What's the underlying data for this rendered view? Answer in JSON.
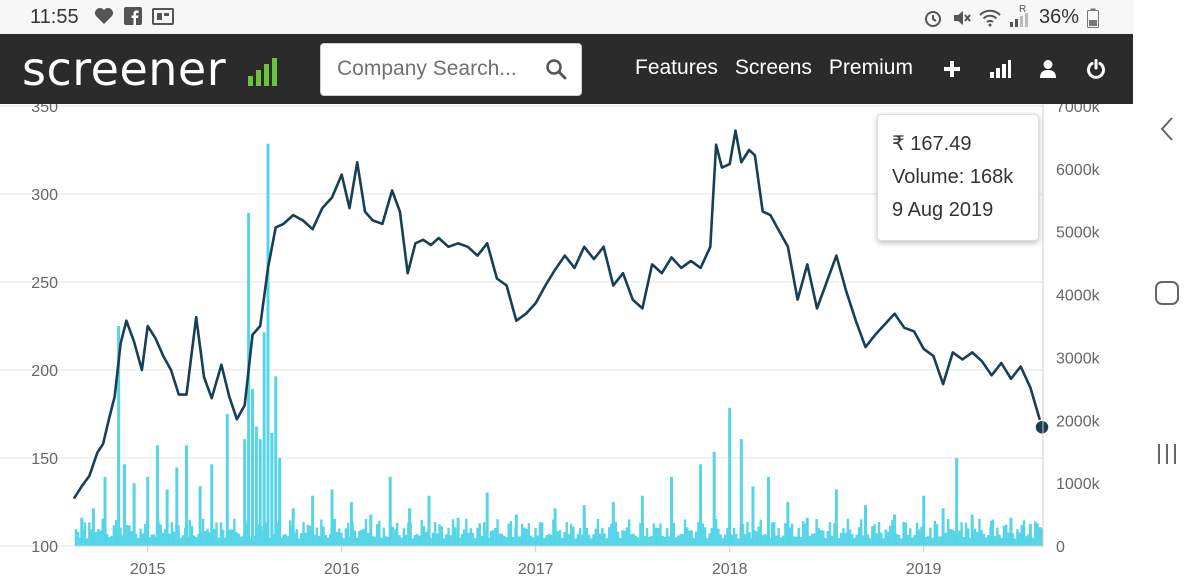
{
  "statusbar": {
    "time": "11:55",
    "battery": "36%",
    "signal_tag": "R",
    "left_icons": [
      "heart-icon",
      "facebook-icon",
      "weather-icon"
    ],
    "right_icons": [
      "alarm-icon",
      "mute-icon",
      "wifi-icon",
      "signal-icon",
      "battery-icon"
    ]
  },
  "navbar": {
    "logo": "screener",
    "search_placeholder": "Company Search...",
    "links": [
      "Features",
      "Screens",
      "Premium"
    ],
    "icons": [
      "plus-icon",
      "bar-chart-icon",
      "user-icon",
      "power-icon"
    ]
  },
  "android_nav": [
    "back-icon",
    "home-icon",
    "recents-icon"
  ],
  "tooltip": {
    "price": "₹ 167.49",
    "volume": "Volume: 168k",
    "date": "9 Aug 2019"
  },
  "colors": {
    "price_line": "#173f55",
    "volume_bars": "#56d4e8",
    "navbar": "#2b2b2b",
    "logo_green": "#6dc43b"
  },
  "chart_data": {
    "type": "line",
    "x_ticks": [
      "2015",
      "2016",
      "2017",
      "2018",
      "2019"
    ],
    "y_left_ticks": [
      "100",
      "150",
      "200",
      "250",
      "300",
      "350"
    ],
    "y_left_range": [
      100,
      350
    ],
    "y_right_ticks": [
      "0",
      "1000k",
      "2000k",
      "3000k",
      "4000k",
      "5000k",
      "6000k",
      "7000k"
    ],
    "y_right_range": [
      0,
      7000
    ],
    "x_range": [
      2014.62,
      2019.61
    ],
    "grid": true,
    "price_series": {
      "x": [
        2014.62,
        2014.66,
        2014.7,
        2014.74,
        2014.77,
        2014.8,
        2014.83,
        2014.86,
        2014.89,
        2014.93,
        2014.97,
        2015.0,
        2015.04,
        2015.08,
        2015.12,
        2015.16,
        2015.2,
        2015.25,
        2015.29,
        2015.33,
        2015.38,
        2015.42,
        2015.46,
        2015.5,
        2015.54,
        2015.58,
        2015.62,
        2015.66,
        2015.7,
        2015.75,
        2015.8,
        2015.85,
        2015.9,
        2015.95,
        2016.0,
        2016.04,
        2016.08,
        2016.12,
        2016.16,
        2016.21,
        2016.26,
        2016.3,
        2016.34,
        2016.38,
        2016.42,
        2016.46,
        2016.5,
        2016.55,
        2016.6,
        2016.65,
        2016.7,
        2016.75,
        2016.8,
        2016.85,
        2016.9,
        2016.95,
        2017.0,
        2017.05,
        2017.1,
        2017.15,
        2017.2,
        2017.25,
        2017.3,
        2017.35,
        2017.4,
        2017.45,
        2017.5,
        2017.55,
        2017.6,
        2017.65,
        2017.7,
        2017.75,
        2017.8,
        2017.85,
        2017.9,
        2017.93,
        2017.96,
        2018.0,
        2018.03,
        2018.06,
        2018.1,
        2018.13,
        2018.17,
        2018.21,
        2018.25,
        2018.3,
        2018.35,
        2018.4,
        2018.45,
        2018.5,
        2018.55,
        2018.6,
        2018.65,
        2018.7,
        2018.75,
        2018.8,
        2018.85,
        2018.9,
        2018.95,
        2019.0,
        2019.05,
        2019.1,
        2019.15,
        2019.2,
        2019.25,
        2019.3,
        2019.35,
        2019.4,
        2019.45,
        2019.5,
        2019.55,
        2019.61
      ],
      "y": [
        127,
        134,
        140,
        153,
        158,
        172,
        185,
        215,
        228,
        216,
        200,
        225,
        218,
        208,
        200,
        186,
        186,
        230,
        196,
        184,
        203,
        185,
        172,
        180,
        220,
        225,
        258,
        281,
        283,
        288,
        285,
        280,
        292,
        298,
        311,
        292,
        318,
        290,
        285,
        283,
        302,
        290,
        255,
        272,
        274,
        271,
        275,
        270,
        272,
        270,
        265,
        272,
        252,
        248,
        228,
        232,
        238,
        248,
        257,
        265,
        258,
        270,
        263,
        270,
        248,
        255,
        240,
        235,
        260,
        255,
        264,
        258,
        262,
        258,
        270,
        328,
        315,
        317,
        336,
        318,
        325,
        322,
        290,
        288,
        280,
        270,
        240,
        260,
        235,
        250,
        265,
        245,
        228,
        213,
        220,
        226,
        232,
        224,
        222,
        212,
        208,
        192,
        210,
        206,
        210,
        205,
        197,
        204,
        195,
        202,
        190,
        167.49
      ]
    },
    "volume_series": {
      "unit": "k",
      "x": [
        2014.66,
        2014.72,
        2014.78,
        2014.85,
        2014.88,
        2014.93,
        2015.0,
        2015.05,
        2015.1,
        2015.15,
        2015.2,
        2015.27,
        2015.33,
        2015.41,
        2015.5,
        2015.52,
        2015.54,
        2015.56,
        2015.58,
        2015.6,
        2015.62,
        2015.64,
        2015.66,
        2015.68,
        2015.75,
        2015.85,
        2015.95,
        2016.05,
        2016.15,
        2016.25,
        2016.35,
        2016.45,
        2016.6,
        2016.75,
        2016.9,
        2017.1,
        2017.25,
        2017.4,
        2017.55,
        2017.7,
        2017.85,
        2017.92,
        2018.0,
        2018.06,
        2018.12,
        2018.2,
        2018.3,
        2018.4,
        2018.55,
        2018.7,
        2018.85,
        2019.0,
        2019.1,
        2019.17,
        2019.25,
        2019.35,
        2019.45,
        2019.55,
        2019.6
      ],
      "values": [
        450,
        600,
        1100,
        3500,
        1300,
        1000,
        1100,
        1600,
        900,
        1250,
        1600,
        950,
        1300,
        2100,
        1700,
        5300,
        2500,
        1900,
        1700,
        3400,
        6400,
        1800,
        2700,
        1400,
        600,
        800,
        900,
        700,
        500,
        1100,
        600,
        800,
        450,
        850,
        500,
        600,
        650,
        700,
        800,
        1100,
        1300,
        1500,
        2200,
        1700,
        950,
        1100,
        700,
        450,
        900,
        650,
        500,
        800,
        600,
        1400,
        500,
        400,
        450,
        350,
        300
      ]
    }
  }
}
